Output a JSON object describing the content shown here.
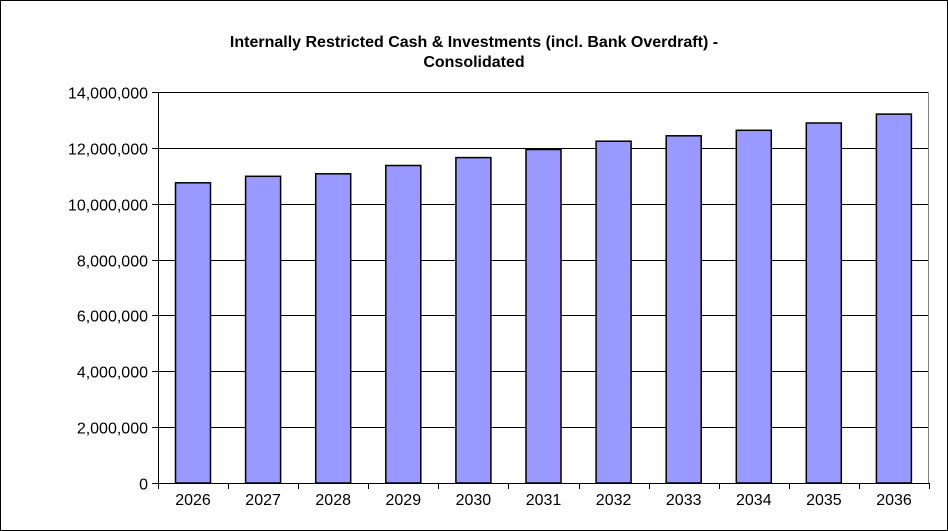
{
  "chart_data": {
    "type": "bar",
    "title": "Internally Restricted Cash & Investments (incl. Bank Overdraft) -",
    "subtitle": "Consolidated",
    "xlabel": "",
    "ylabel": "",
    "categories": [
      "2026",
      "2027",
      "2028",
      "2029",
      "2030",
      "2031",
      "2032",
      "2033",
      "2034",
      "2035",
      "2036"
    ],
    "series": [
      {
        "values": [
          10750000,
          10980000,
          11070000,
          11370000,
          11650000,
          11940000,
          12240000,
          12430000,
          12630000,
          12890000,
          13210000
        ]
      }
    ],
    "ylim": [
      0,
      14000000
    ],
    "yticks": [
      0,
      2000000,
      4000000,
      6000000,
      8000000,
      10000000,
      12000000,
      14000000
    ],
    "ytick_labels": [
      "0",
      "2,000,000",
      "4,000,000",
      "6,000,000",
      "8,000,000",
      "10,000,000",
      "12,000,000",
      "14,000,000"
    ],
    "grid": true,
    "legend": "none",
    "colors": {
      "bar_fill": "#9999ff",
      "bar_stroke": "#000000",
      "grid": "#000000"
    }
  }
}
